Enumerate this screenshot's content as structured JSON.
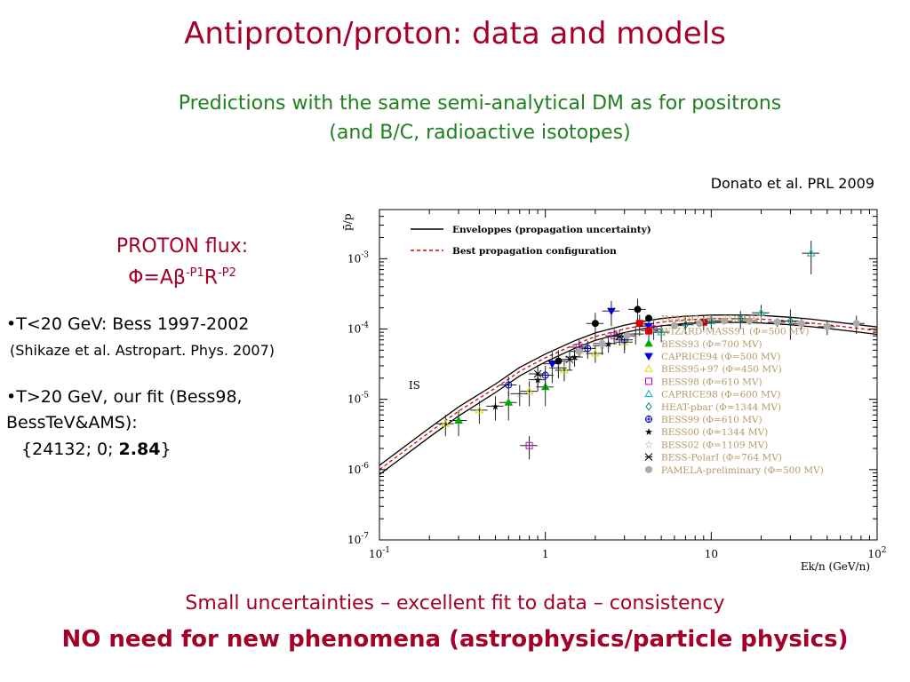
{
  "slide": {
    "title": "Antiproton/proton: data and models",
    "subtitle_line1": "Predictions  with the same semi-analytical DM as for positrons",
    "subtitle_line2": "(and B/C, radioactive isotopes)",
    "credit": "Donato et al. PRL 2009",
    "proton_flux_label": "PROTON flux:",
    "formula": {
      "phi": "Φ=Aβ",
      "p1": "-P1",
      "r": "R",
      "p2": "-P2"
    },
    "bullet1": "T<20 GeV: Bess 1997-2002",
    "bullet1_ref": "(Shikaze et al. Astropart. Phys. 2007)",
    "bullet2": "T>20 GeV, our fit (Bess98, BessTeV&AMS):",
    "fit_values_prefix": " {24132; 0; ",
    "fit_values_bold": "2.84",
    "fit_values_suffix": "}",
    "footer1": "Small uncertainties – excellent fit to data – consistency",
    "footer2": "NO need for new phenomena (astrophysics/particle physics)"
  },
  "colors": {
    "title": "#a3002a",
    "subtitle": "#208020",
    "legend_text": "#b59a66"
  },
  "chart_data": {
    "type": "scatter",
    "ylabel": "p̄/p",
    "xlabel": "Ek/n (GeV/n)",
    "x_scale": "log",
    "y_scale": "log",
    "xlim": [
      0.1,
      100
    ],
    "ylim": [
      1e-07,
      0.005
    ],
    "x_ticks": [
      {
        "v": 0.1,
        "b": "10",
        "e": "-1"
      },
      {
        "v": 1,
        "b": "1",
        "e": ""
      },
      {
        "v": 10,
        "b": "10",
        "e": ""
      },
      {
        "v": 100,
        "b": "10",
        "e": "2"
      }
    ],
    "y_ticks": [
      {
        "v": 1e-07,
        "b": "10",
        "e": "-7"
      },
      {
        "v": 1e-06,
        "b": "10",
        "e": "-6"
      },
      {
        "v": 1e-05,
        "b": "10",
        "e": "-5"
      },
      {
        "v": 0.0001,
        "b": "10",
        "e": "-4"
      },
      {
        "v": 0.001,
        "b": "10",
        "e": "-3"
      }
    ],
    "annotation": "IS",
    "line_legend": [
      {
        "label": "Enveloppes (propagation uncertainty)",
        "style": "solid",
        "color": "#000000"
      },
      {
        "label": "Best propagation configuration",
        "style": "dashed",
        "color": "#dd0000"
      }
    ],
    "model": {
      "x": [
        0.1,
        0.2,
        0.3,
        0.5,
        0.7,
        1,
        1.5,
        2,
        3,
        4,
        5,
        7,
        10,
        15,
        20,
        30,
        40,
        50,
        70,
        100
      ],
      "best": [
        1e-06,
        3.4e-06,
        6.8e-06,
        1.45e-05,
        2.5e-05,
        3.9e-05,
        6e-05,
        7.8e-05,
        0.0001,
        0.000115,
        0.000125,
        0.000135,
        0.00014,
        0.00014,
        0.000138,
        0.00013,
        0.000122,
        0.000115,
        0.000105,
        9.5e-05
      ],
      "upper": [
        1.15e-06,
        3.9e-06,
        7.8e-06,
        1.65e-05,
        2.85e-05,
        4.4e-05,
        6.8e-05,
        8.8e-05,
        0.000113,
        0.00013,
        0.000141,
        0.000152,
        0.000158,
        0.000158,
        0.000156,
        0.000147,
        0.000138,
        0.00013,
        0.000118,
        0.000107
      ],
      "lower": [
        8.5e-07,
        2.9e-06,
        5.8e-06,
        1.25e-05,
        2.15e-05,
        3.4e-05,
        5.3e-05,
        6.9e-05,
        8.9e-05,
        0.000102,
        0.000111,
        0.00012,
        0.000124,
        0.000124,
        0.000122,
        0.000115,
        0.000108,
        0.000102,
        9.3e-05,
        8.4e-05
      ]
    },
    "series": [
      {
        "name": "IMAX92 (Φ=750 MV)",
        "marker": "circle",
        "color": "#000000",
        "filled": true,
        "points": [
          [
            1.2,
            3.5e-05,
            1.5e-05
          ],
          [
            2.0,
            0.00012,
            5e-05
          ],
          [
            3.6,
            0.00019,
            8e-05
          ]
        ]
      },
      {
        "name": "WIZARD-MASS91 (Φ=500 MV)",
        "marker": "square",
        "color": "#dd0000",
        "filled": true,
        "points": [
          [
            3.7,
            0.00012,
            4e-05
          ],
          [
            9.0,
            0.000125,
            3e-05
          ]
        ]
      },
      {
        "name": "BESS93 (Φ=700 MV)",
        "marker": "triangle-up",
        "color": "#00aa00",
        "filled": true,
        "points": [
          [
            0.3,
            5e-06,
            2e-06
          ],
          [
            0.6,
            9e-06,
            4e-06
          ],
          [
            1.0,
            1.5e-05,
            7e-06
          ]
        ]
      },
      {
        "name": "CAPRICE94 (Φ=500 MV)",
        "marker": "triangle-down",
        "color": "#0000dd",
        "filled": true,
        "points": [
          [
            1.1,
            3.2e-05,
            1.5e-05
          ],
          [
            2.5,
            0.00018,
            7e-05
          ],
          [
            4.2,
            0.00011,
            4e-05
          ]
        ]
      },
      {
        "name": "BESS95+97 (Φ=450 MV)",
        "marker": "triangle-up",
        "color": "#dddd00",
        "filled": false,
        "points": [
          [
            0.25,
            4.5e-06,
            1.5e-06
          ],
          [
            0.4,
            7e-06,
            2.5e-06
          ],
          [
            0.8,
            1.3e-05,
            5e-06
          ],
          [
            1.3,
            2.6e-05,
            8e-06
          ],
          [
            2.0,
            4.5e-05,
            1.2e-05
          ],
          [
            3.0,
            6.5e-05,
            2e-05
          ]
        ]
      },
      {
        "name": "BESS98 (Φ=610 MV)",
        "marker": "square",
        "color": "#cc00cc",
        "filled": false,
        "points": [
          [
            0.8,
            2.2e-06,
            8e-07
          ],
          [
            1.6,
            5.5e-05,
            1.5e-05
          ],
          [
            2.6,
            8e-05,
            2e-05
          ],
          [
            4.5,
            0.0001,
            3e-05
          ]
        ]
      },
      {
        "name": "CAPRICE98 (Φ=600 MV)",
        "marker": "triangle-up",
        "color": "#00bbbb",
        "filled": false,
        "points": [
          [
            5.0,
            9e-05,
            2.5e-05
          ],
          [
            10,
            0.00013,
            3e-05
          ],
          [
            20,
            0.00017,
            5e-05
          ],
          [
            40,
            0.0012,
            0.0006
          ]
        ]
      },
      {
        "name": "HEAT-pbar (Φ=1344 MV)",
        "marker": "diamond",
        "color": "#008888",
        "filled": false,
        "points": [
          [
            7,
            0.000115,
            3e-05
          ],
          [
            15,
            0.00014,
            4e-05
          ],
          [
            30,
            0.00013,
            6e-05
          ]
        ]
      },
      {
        "name": "BESS99 (Φ=610 MV)",
        "marker": "plus-circle",
        "color": "#0000aa",
        "filled": false,
        "points": [
          [
            0.6,
            1.6e-05,
            5e-06
          ],
          [
            1.0,
            2.2e-05,
            8e-06
          ],
          [
            1.8,
            5.3e-05,
            1.5e-05
          ],
          [
            3.0,
            7e-05,
            2e-05
          ]
        ]
      },
      {
        "name": "BESS00 (Φ=1344 MV)",
        "marker": "star",
        "color": "#000000",
        "filled": true,
        "points": [
          [
            0.5,
            8e-06,
            3e-06
          ],
          [
            0.9,
            1.9e-05,
            6e-06
          ],
          [
            1.5,
            4e-05,
            1.1e-05
          ],
          [
            2.4,
            6.2e-05,
            1.6e-05
          ]
        ]
      },
      {
        "name": "BESS02 (Φ=1109 MV)",
        "marker": "star",
        "color": "#888888",
        "filled": false,
        "points": [
          [
            0.7,
            1.2e-05,
            4e-06
          ],
          [
            1.2,
            2.8e-05,
            8e-06
          ],
          [
            2.2,
            5.8e-05,
            1.5e-05
          ],
          [
            3.5,
            8.5e-05,
            2.5e-05
          ]
        ]
      },
      {
        "name": "BESS-PolarI (Φ=764 MV)",
        "marker": "x-star",
        "color": "#000000",
        "filled": false,
        "points": [
          [
            0.9,
            2.3e-05,
            8e-06
          ],
          [
            1.4,
            3.7e-05,
            1.1e-05
          ],
          [
            2.8,
            7.8e-05,
            2e-05
          ]
        ]
      },
      {
        "name": "PAMELA-preliminary (Φ=500 MV)",
        "marker": "circle",
        "color": "#aaaaaa",
        "filled": true,
        "points": [
          [
            1.6,
            4.8e-05,
            6e-06
          ],
          [
            2.2,
            6.2e-05,
            7e-06
          ],
          [
            3.1,
            8e-05,
            8e-06
          ],
          [
            4.3,
            9.5e-05,
            9e-06
          ],
          [
            6,
            0.000112,
            1e-05
          ],
          [
            8.5,
            0.00012,
            1.2e-05
          ],
          [
            12,
            0.00013,
            1.4e-05
          ],
          [
            17,
            0.00013,
            1.6e-05
          ],
          [
            25,
            0.000125,
            1.8e-05
          ],
          [
            35,
            0.00012,
            2.2e-05
          ],
          [
            50,
            0.000108,
            2.6e-05
          ],
          [
            75,
            0.00012,
            3.5e-05
          ]
        ]
      }
    ]
  }
}
